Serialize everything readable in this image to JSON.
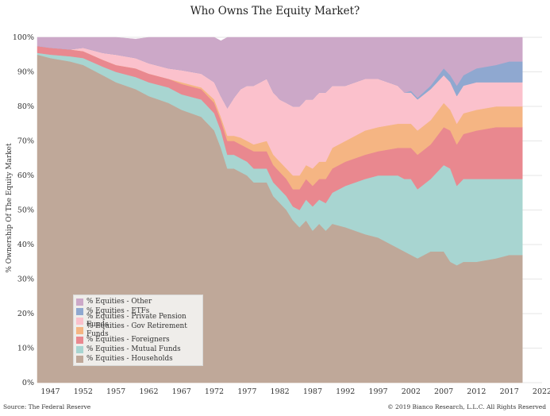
{
  "chart_data": {
    "type": "area",
    "title": "Who Owns The Equity Market?",
    "xlabel": "",
    "ylabel": "% Ownership Of The Equity Market",
    "stacked": true,
    "xlim": [
      1945,
      2022
    ],
    "ylim": [
      0,
      100
    ],
    "x_ticks": [
      "1947",
      "1952",
      "1957",
      "1962",
      "1967",
      "1972",
      "1977",
      "1982",
      "1987",
      "1992",
      "1997",
      "2002",
      "2007",
      "2012",
      "2017",
      "2022"
    ],
    "y_ticks": [
      "0%",
      "10%",
      "20%",
      "30%",
      "40%",
      "50%",
      "60%",
      "70%",
      "80%",
      "90%",
      "100%"
    ],
    "grid": true,
    "legend_position": "bottom-left",
    "x": [
      1945,
      1947,
      1950,
      1952,
      1955,
      1957,
      1960,
      1962,
      1965,
      1967,
      1970,
      1972,
      1973,
      1974,
      1975,
      1976,
      1977,
      1978,
      1980,
      1981,
      1982,
      1983,
      1984,
      1985,
      1986,
      1987,
      1988,
      1989,
      1990,
      1992,
      1995,
      1997,
      2000,
      2001,
      2002,
      2003,
      2005,
      2007,
      2008,
      2009,
      2010,
      2012,
      2015,
      2017,
      2019
    ],
    "series": [
      {
        "name": "% Equities - Households",
        "color": "#bfa899",
        "values": [
          95,
          94,
          93,
          92,
          89,
          87,
          85,
          83,
          81,
          79,
          77,
          73,
          68,
          62,
          62,
          61,
          60,
          58,
          58,
          54,
          52,
          50,
          47,
          45,
          47,
          44,
          46,
          44,
          46,
          45,
          43,
          42,
          39,
          38,
          37,
          36,
          38,
          38,
          35,
          34,
          35,
          35,
          36,
          37,
          37
        ]
      },
      {
        "name": "% Equities - Mutual Funds",
        "color": "#a8d5d1",
        "values": [
          0.5,
          1,
          1.5,
          2,
          2.5,
          3,
          3.5,
          4,
          4.5,
          4.5,
          5,
          5,
          5,
          4,
          4,
          4,
          4,
          4,
          4,
          4,
          4,
          4,
          4,
          5,
          6,
          7,
          7,
          8,
          9,
          12,
          16,
          18,
          21,
          21,
          22,
          20,
          21,
          25,
          27,
          23,
          24,
          24,
          23,
          22,
          22
        ]
      },
      {
        "name": "% Equities - Foreigners",
        "color": "#e9888f",
        "values": [
          2,
          2,
          2,
          2,
          2,
          2,
          2.5,
          2.5,
          2.5,
          3,
          3,
          3,
          3,
          4,
          4,
          4,
          4,
          5,
          5,
          5,
          5,
          5,
          5,
          6,
          6,
          6,
          6,
          7,
          7,
          7,
          7,
          7,
          8,
          9,
          9,
          10,
          10,
          11,
          11,
          12,
          13,
          14,
          15,
          15,
          15
        ]
      },
      {
        "name": "% Equities - Gov Retirement Funds",
        "color": "#f5b583",
        "values": [
          0,
          0,
          0,
          0,
          0,
          0,
          0,
          0,
          0,
          0.5,
          0.5,
          1,
          1,
          1.5,
          1.5,
          2,
          2,
          2,
          3,
          3,
          3,
          3,
          4,
          4,
          4,
          5,
          5,
          5,
          6,
          6,
          7,
          7,
          7,
          7,
          7,
          7,
          7,
          7,
          6,
          6,
          6,
          6,
          6,
          6,
          6
        ]
      },
      {
        "name": "% Equities - Private Pension Funds",
        "color": "#fbc1cc",
        "values": [
          0,
          0,
          0,
          1,
          2,
          3,
          3,
          3,
          3,
          3.5,
          4,
          5,
          6,
          8,
          11,
          14,
          16,
          17,
          18,
          18,
          18,
          19,
          20,
          20,
          19,
          20,
          20,
          20,
          18,
          16,
          15,
          14,
          11,
          9,
          9,
          9,
          9,
          8,
          8,
          8,
          8,
          8,
          7,
          7,
          7
        ]
      },
      {
        "name": "% Equities - ETFs",
        "color": "#8fa8d0",
        "values": [
          0,
          0,
          0,
          0,
          0,
          0,
          0,
          0,
          0,
          0,
          0,
          0,
          0,
          0,
          0,
          0,
          0,
          0,
          0,
          0,
          0,
          0,
          0,
          0,
          0,
          0,
          0,
          0,
          0,
          0,
          0,
          0,
          0,
          0,
          0.5,
          0.5,
          1,
          2,
          2,
          3,
          3,
          4,
          5,
          6,
          6
        ]
      },
      {
        "name": "% Equities - Other",
        "color": "#cca8c8",
        "values": [
          2.5,
          3,
          3.5,
          3,
          4.5,
          5,
          5.5,
          7.5,
          9,
          9.5,
          10.5,
          13,
          16,
          20.5,
          17.5,
          15,
          14,
          14,
          12,
          16,
          18,
          19,
          20,
          20,
          18,
          18,
          16,
          16,
          14,
          14,
          12,
          12,
          14,
          16,
          16.5,
          17.5,
          14,
          9,
          11,
          14,
          11,
          9,
          8,
          7,
          7
        ]
      }
    ]
  },
  "legend_items": [
    {
      "label": "% Equities - Other",
      "color": "#cca8c8"
    },
    {
      "label": "% Equities - ETFs",
      "color": "#8fa8d0"
    },
    {
      "label": "% Equities - Private Pension Funds",
      "color": "#fbc1cc"
    },
    {
      "label": "% Equities - Gov Retirement Funds",
      "color": "#f5b583"
    },
    {
      "label": "% Equities - Foreigners",
      "color": "#e9888f"
    },
    {
      "label": "% Equities - Mutual Funds",
      "color": "#a8d5d1"
    },
    {
      "label": "% Equities - Households",
      "color": "#bfa899"
    }
  ],
  "footer": {
    "source": "Source: The Federal Reserve",
    "copyright": "© 2019 Bianco Research, L.L.C. All Rights Reserved"
  }
}
